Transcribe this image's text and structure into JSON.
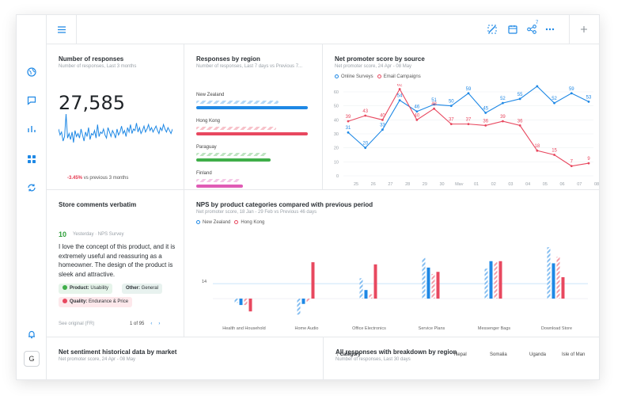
{
  "colors": {
    "accent": "#1e88e5",
    "red": "#e8485f",
    "green": "#3fae49",
    "pink": "#e05bb5"
  },
  "rail": {
    "icons": [
      "globe-icon",
      "chat-icon",
      "bar-chart-icon",
      "dashboard-grid-icon",
      "sync-icon",
      "bell-icon"
    ],
    "user_initial": "G"
  },
  "topbar": {
    "share_count": "7"
  },
  "responses": {
    "title": "Number of responses",
    "subtitle": "Number of responses, Last 3 months",
    "total": "27,585",
    "delta": "-3.45%",
    "delta_text": "vs previous 3 months",
    "sparkline": [
      52,
      48,
      50,
      44,
      47,
      62,
      46,
      49,
      45,
      50,
      43,
      51,
      47,
      49,
      46,
      52,
      48,
      44,
      50,
      47,
      53,
      45,
      49,
      48,
      51,
      46,
      55,
      47,
      50,
      49,
      52,
      48,
      46,
      53,
      50,
      47,
      51,
      49,
      46,
      52,
      48,
      50,
      54,
      49,
      51,
      47,
      53,
      50,
      55,
      49,
      52,
      51,
      56,
      50,
      53,
      49,
      51,
      54,
      50,
      52,
      55,
      51,
      53,
      50,
      52,
      54,
      51,
      49,
      53,
      51,
      55,
      52,
      50,
      53,
      51,
      49,
      52
    ]
  },
  "regions": {
    "title": "Responses by region",
    "subtitle": "Number of responses, Last 7 days vs Previous 7...",
    "items": [
      {
        "name": "New Zealand",
        "value": 0.98,
        "prev": 0.72,
        "color": "#1e88e5"
      },
      {
        "name": "Hong Kong",
        "value": 0.98,
        "prev": 0.7,
        "color": "#e8485f"
      },
      {
        "name": "Paraguay",
        "value": 0.65,
        "prev": 0.62,
        "color": "#3fae49"
      },
      {
        "name": "Finland",
        "value": 0.41,
        "prev": 0.38,
        "color": "#e05bb5"
      }
    ]
  },
  "nps_source": {
    "title": "Net promoter score by source",
    "subtitle": "Net promoter score, 24 Apr - 08 May",
    "chart_data": {
      "type": "line",
      "x": [
        "25",
        "26",
        "27",
        "28",
        "29",
        "30",
        "May",
        "01",
        "02",
        "03",
        "04",
        "05",
        "06",
        "07",
        "08"
      ],
      "ylim": [
        0,
        60
      ],
      "yticks": [
        "0",
        "10",
        "20",
        "30",
        "40",
        "50",
        "60"
      ],
      "series": [
        {
          "name": "Online Surveys",
          "color": "#1e88e5",
          "values": [
            31,
            20,
            33,
            54,
            46,
            51,
            50,
            59,
            45,
            52,
            55,
            64,
            52,
            59,
            53
          ]
        },
        {
          "name": "Email Campaigns",
          "color": "#e8485f",
          "values": [
            39,
            43,
            40,
            62,
            40,
            48,
            37,
            37,
            36,
            39,
            36,
            18,
            15,
            7,
            9
          ]
        }
      ],
      "point_labels": [
        [
          "31",
          "20",
          "33",
          "54",
          "46",
          "51",
          "50",
          "59",
          "45",
          "52",
          "55",
          "64",
          "52",
          "59",
          "53"
        ],
        [
          "39",
          "43",
          "40",
          "62",
          "40",
          "48",
          "37",
          "37",
          "36",
          "39",
          "36",
          "18",
          "15",
          "7",
          "9"
        ]
      ]
    }
  },
  "comments": {
    "title": "Store comments verbatim",
    "score": "10",
    "meta": "Yesterday · NPS Survey",
    "text": "I love the concept of this product, and it is extremely useful and reassuring as a homeowner. The design of the product is sleek and attractive.",
    "chips": [
      {
        "label": "Product:",
        "value": "Usability",
        "bg": "#e6f4ea",
        "icon": "#3fae49"
      },
      {
        "label": "Other:",
        "value": "General",
        "bg": "#e8f2ef",
        "icon": ""
      },
      {
        "label": "Quality:",
        "value": "Endurance & Price",
        "bg": "#fde8eb",
        "icon": "#e8485f"
      }
    ],
    "see_original": "See original (FR)",
    "page": "1",
    "of": "of 95"
  },
  "categories": {
    "title": "NPS by product categories compared with previous period",
    "subtitle": "Net promoter score, 18 Jan - 29 Feb vs Previous 46 days",
    "reference_label": "14",
    "chart_data": {
      "type": "bar",
      "categories": [
        "Health and Household",
        "Home Audio",
        "Office Electronics",
        "Service Plans",
        "Messenger Bags",
        "Download Store"
      ],
      "reference_line": 14,
      "ylim": [
        -20,
        60
      ],
      "series": [
        {
          "name": "New Zealand",
          "color": "#1e88e5",
          "values": [
            -6,
            -5,
            8,
            29,
            35,
            33
          ],
          "previous": [
            -4,
            -15,
            19,
            38,
            28,
            48
          ]
        },
        {
          "name": "Hong Kong",
          "color": "#e8485f",
          "values": [
            -12,
            34,
            32,
            25,
            35,
            20
          ],
          "previous": [
            -6,
            -3,
            4,
            23,
            34,
            39
          ]
        }
      ]
    }
  },
  "sentiment": {
    "title": "Net sentiment historical data by market",
    "subtitle": "Net promoter score, 24 Apr - 08 May"
  },
  "breakdown": {
    "title": "All responses with breakdown by region",
    "subtitle": "Number of responses, Last 30 days",
    "columns": [
      "Category",
      "Nepal",
      "Somalia",
      "Uganda",
      "Isle of Man"
    ]
  }
}
